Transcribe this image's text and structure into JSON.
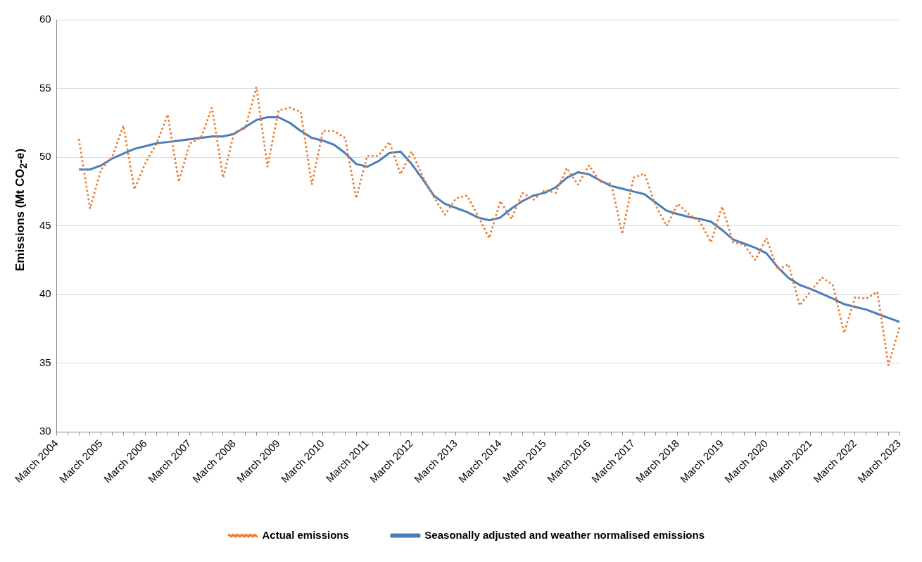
{
  "chart_data": {
    "type": "line",
    "ylabel": "Emissions (Mt CO$_{2}$-e)",
    "categories": [
      "March 2004",
      null,
      null,
      null,
      "March 2005",
      null,
      null,
      null,
      "March 2006",
      null,
      null,
      null,
      "March 2007",
      null,
      null,
      null,
      "March 2008",
      null,
      null,
      null,
      "March 2009",
      null,
      null,
      null,
      "March 2010",
      null,
      null,
      null,
      "March 2011",
      null,
      null,
      null,
      "March 2012",
      null,
      null,
      null,
      "March 2013",
      null,
      null,
      null,
      "March 2014",
      null,
      null,
      null,
      "March 2015",
      null,
      null,
      null,
      "March 2016",
      null,
      null,
      null,
      "March 2017",
      null,
      null,
      null,
      "March 2018",
      null,
      null,
      null,
      "March 2019",
      null,
      null,
      null,
      "March 2020",
      null,
      null,
      null,
      "March 2021",
      null,
      null,
      null,
      "March 2022",
      null,
      null,
      null,
      "March 2023"
    ],
    "series": [
      {
        "name": "Actual emissions",
        "color": "#ed7d31",
        "line_style": "dotted",
        "values": [
          null,
          null,
          51.25,
          46.25,
          49.1,
          50.0,
          52.3,
          47.65,
          49.6,
          51.0,
          53.1,
          48.2,
          51.0,
          51.4,
          53.6,
          48.5,
          51.8,
          52.1,
          55.1,
          49.3,
          53.4,
          53.6,
          53.3,
          48.0,
          51.9,
          51.9,
          51.4,
          47.0,
          50.1,
          50.1,
          51.1,
          48.75,
          50.4,
          48.6,
          47.1,
          45.8,
          47.0,
          47.2,
          45.7,
          44.1,
          46.8,
          45.5,
          47.4,
          46.9,
          47.6,
          47.4,
          49.2,
          48.0,
          49.4,
          48.2,
          48.1,
          44.4,
          48.5,
          48.8,
          46.5,
          45.0,
          46.6,
          45.85,
          45.3,
          43.8,
          46.4,
          43.8,
          43.6,
          42.5,
          44.1,
          41.8,
          42.2,
          39.2,
          40.25,
          41.25,
          40.7,
          37.2,
          39.8,
          39.7,
          40.2,
          34.85,
          37.6
        ]
      },
      {
        "name": "Seasonally adjusted and weather normalised emissions",
        "color": "#4a7ebb",
        "line_style": "solid",
        "values": [
          null,
          null,
          49.1,
          49.1,
          49.4,
          49.9,
          50.25,
          50.6,
          50.8,
          51.0,
          51.1,
          51.2,
          51.3,
          51.4,
          51.5,
          51.5,
          51.7,
          52.2,
          52.7,
          52.9,
          52.9,
          52.5,
          51.9,
          51.4,
          51.2,
          50.9,
          50.3,
          49.5,
          49.3,
          49.7,
          50.3,
          50.4,
          49.5,
          48.4,
          47.2,
          46.6,
          46.3,
          46.0,
          45.6,
          45.4,
          45.6,
          46.25,
          46.8,
          47.2,
          47.4,
          47.8,
          48.5,
          48.9,
          48.75,
          48.3,
          47.9,
          47.7,
          47.5,
          47.3,
          46.7,
          46.1,
          45.85,
          45.65,
          45.5,
          45.3,
          44.7,
          44.0,
          43.7,
          43.4,
          43.0,
          42.0,
          41.2,
          40.7,
          40.4,
          40.05,
          39.7,
          39.3,
          39.1,
          38.9,
          38.6,
          38.3,
          38.0
        ]
      }
    ],
    "ylim": [
      30,
      60
    ],
    "yticks": [
      30,
      35,
      40,
      45,
      50,
      55,
      60
    ],
    "grid": "y",
    "legend": "bottom",
    "marker": "none"
  }
}
